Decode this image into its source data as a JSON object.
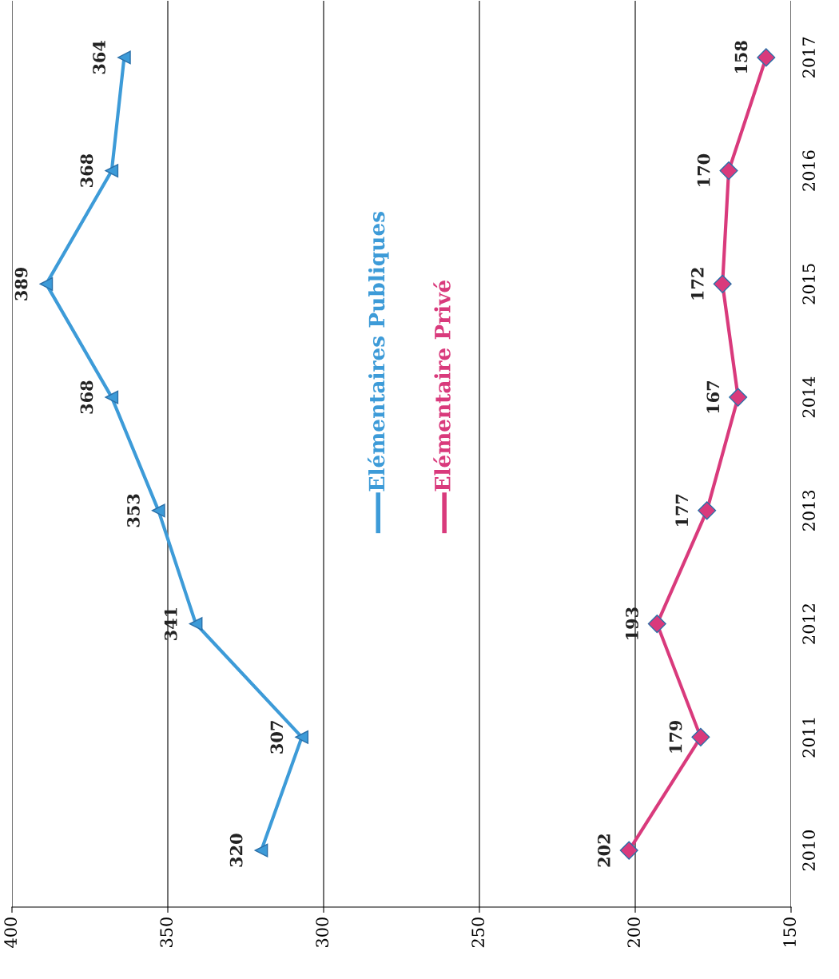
{
  "chart_data": {
    "type": "line",
    "orientation": "horizontal",
    "categories": [
      "2017",
      "2016",
      "2015",
      "2014",
      "2013",
      "2012",
      "2011",
      "2010"
    ],
    "series": [
      {
        "name": "Elémentaires Publiques",
        "color": "#3d9bd8",
        "marker": "triangle",
        "values": [
          364,
          368,
          389,
          368,
          353,
          341,
          307,
          320
        ]
      },
      {
        "name": "Elémentaire Privé",
        "color": "#d93a7c",
        "marker": "diamond",
        "values": [
          158,
          170,
          172,
          167,
          177,
          193,
          179,
          202
        ]
      }
    ],
    "xlim": [
      400,
      150
    ],
    "xticks": [
      400,
      350,
      300,
      250,
      200,
      150
    ],
    "grid": "x",
    "legend": "center",
    "data_labels": true,
    "line_style": "solid"
  }
}
